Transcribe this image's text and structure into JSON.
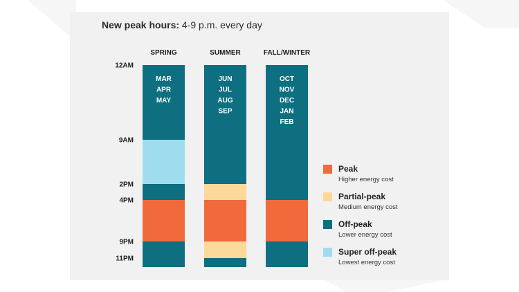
{
  "header": {
    "title_bold": "New peak hours:",
    "title_rest": " 4-9 p.m. every day"
  },
  "colors": {
    "peak": "#f06a3c",
    "partial_peak": "#fcd89a",
    "off_peak": "#0e6f80",
    "super_off_peak": "#9fdcee"
  },
  "chart_data": {
    "type": "bar",
    "orientation": "vertical-stacked-timeline",
    "time_ticks": [
      {
        "label": "12AM",
        "hour": 0
      },
      {
        "label": "9AM",
        "hour": 9
      },
      {
        "label": "2PM",
        "hour": 14
      },
      {
        "label": "4PM",
        "hour": 16
      },
      {
        "label": "9PM",
        "hour": 21
      },
      {
        "label": "11PM",
        "hour": 23
      }
    ],
    "hour_range": [
      0,
      24
    ],
    "columns": [
      {
        "name": "SPRING",
        "months": [
          "MAR",
          "APR",
          "MAY"
        ],
        "segments": [
          {
            "start": 0,
            "end": 9,
            "rate": "off_peak"
          },
          {
            "start": 9,
            "end": 14,
            "rate": "super_off_peak"
          },
          {
            "start": 14,
            "end": 16,
            "rate": "off_peak"
          },
          {
            "start": 16,
            "end": 21,
            "rate": "peak"
          },
          {
            "start": 21,
            "end": 24,
            "rate": "off_peak"
          }
        ]
      },
      {
        "name": "SUMMER",
        "months": [
          "JUN",
          "JUL",
          "AUG",
          "SEP"
        ],
        "segments": [
          {
            "start": 0,
            "end": 14,
            "rate": "off_peak"
          },
          {
            "start": 14,
            "end": 16,
            "rate": "partial_peak"
          },
          {
            "start": 16,
            "end": 21,
            "rate": "peak"
          },
          {
            "start": 21,
            "end": 23,
            "rate": "partial_peak"
          },
          {
            "start": 23,
            "end": 24,
            "rate": "off_peak"
          }
        ]
      },
      {
        "name": "FALL/WINTER",
        "months": [
          "OCT",
          "NOV",
          "DEC",
          "JAN",
          "FEB"
        ],
        "segments": [
          {
            "start": 0,
            "end": 16,
            "rate": "off_peak"
          },
          {
            "start": 16,
            "end": 21,
            "rate": "peak"
          },
          {
            "start": 21,
            "end": 24,
            "rate": "off_peak"
          }
        ]
      }
    ],
    "legend": [
      {
        "rate": "peak",
        "name": "Peak",
        "description": "Higher energy cost"
      },
      {
        "rate": "partial_peak",
        "name": "Partial-peak",
        "description": "Medium energy cost"
      },
      {
        "rate": "off_peak",
        "name": "Off-peak",
        "description": "Lower energy cost"
      },
      {
        "rate": "super_off_peak",
        "name": "Super off-peak",
        "description": "Lowest energy cost"
      }
    ],
    "legend_position": "right"
  }
}
